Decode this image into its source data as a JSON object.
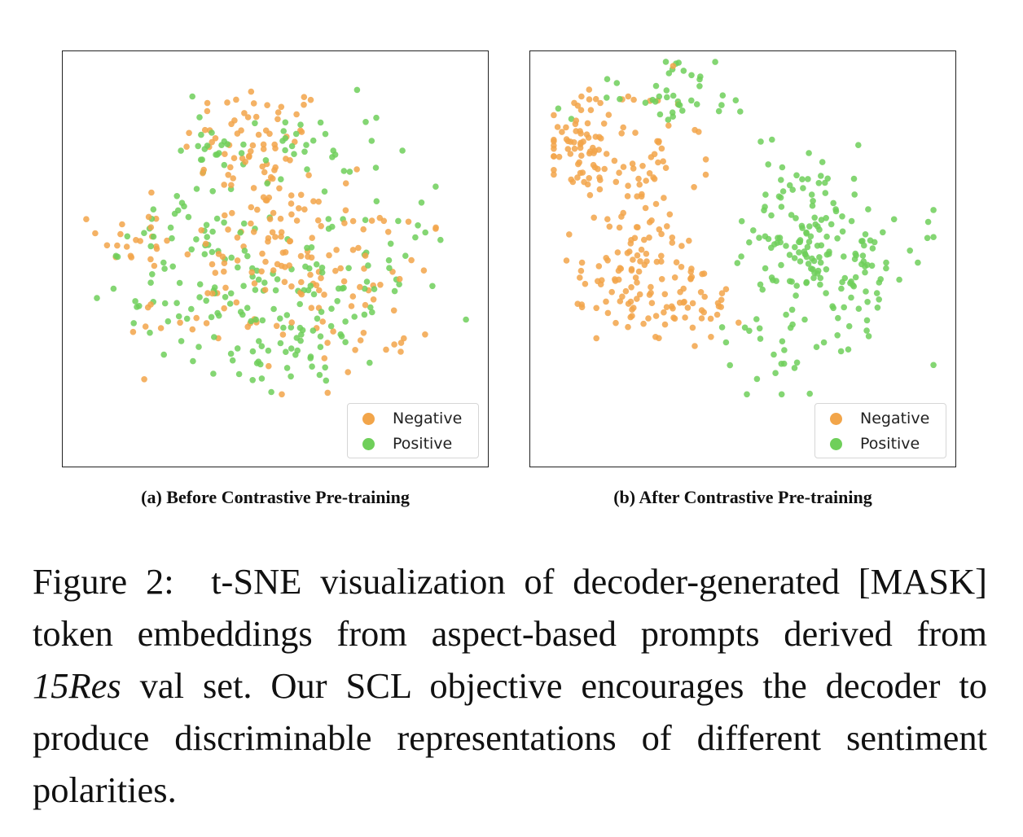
{
  "figure": {
    "caption_prefix": "Figure 2:",
    "caption_part1": "t-SNE visualization of decoder-generated [MASK] token embeddings from aspect-based prompts derived from",
    "caption_italic": "15Res",
    "caption_part2": "val set. Our SCL objective encourages the decoder to produce discriminable representations of different sentiment polarities."
  },
  "colors": {
    "negative": "#f2a54a",
    "positive": "#6fcf5a"
  },
  "chart_data": [
    {
      "type": "scatter",
      "subcaption": "(a) Before Contrastive Pre-training",
      "legend": {
        "position": "lower-right",
        "entries": [
          "Negative",
          "Positive"
        ]
      },
      "axes_visible": false,
      "xlim": [
        0,
        100
      ],
      "ylim": [
        0,
        100
      ],
      "series": [
        {
          "name": "Negative",
          "color": "#f2a54a",
          "clusters": [
            {
              "cx": 45,
              "cy": 78,
              "sx": 9,
              "sy": 8,
              "n": 70
            },
            {
              "cx": 50,
              "cy": 55,
              "sx": 12,
              "sy": 10,
              "n": 70
            },
            {
              "cx": 16,
              "cy": 55,
              "sx": 5,
              "sy": 4,
              "n": 20
            },
            {
              "cx": 70,
              "cy": 45,
              "sx": 12,
              "sy": 10,
              "n": 45
            },
            {
              "cx": 33,
              "cy": 36,
              "sx": 10,
              "sy": 7,
              "n": 25
            },
            {
              "cx": 68,
              "cy": 28,
              "sx": 8,
              "sy": 6,
              "n": 15
            }
          ]
        },
        {
          "name": "Positive",
          "color": "#6fcf5a",
          "clusters": [
            {
              "cx": 55,
              "cy": 78,
              "sx": 11,
              "sy": 6,
              "n": 40
            },
            {
              "cx": 45,
              "cy": 42,
              "sx": 14,
              "sy": 9,
              "n": 80
            },
            {
              "cx": 30,
              "cy": 65,
              "sx": 6,
              "sy": 10,
              "n": 30
            },
            {
              "cx": 72,
              "cy": 46,
              "sx": 12,
              "sy": 10,
              "n": 45
            },
            {
              "cx": 22,
              "cy": 45,
              "sx": 7,
              "sy": 7,
              "n": 25
            },
            {
              "cx": 52,
              "cy": 25,
              "sx": 12,
              "sy": 5,
              "n": 30
            }
          ]
        }
      ]
    },
    {
      "type": "scatter",
      "subcaption": "(b) After Contrastive Pre-training",
      "legend": {
        "position": "lower-right",
        "entries": [
          "Negative",
          "Positive"
        ]
      },
      "axes_visible": false,
      "xlim": [
        0,
        100
      ],
      "ylim": [
        0,
        100
      ],
      "series": [
        {
          "name": "Negative",
          "color": "#f2a54a",
          "clusters": [
            {
              "cx": 9,
              "cy": 78,
              "sx": 5,
              "sy": 6,
              "n": 70
            },
            {
              "cx": 23,
              "cy": 72,
              "sx": 6,
              "sy": 6,
              "n": 25
            },
            {
              "cx": 25,
              "cy": 52,
              "sx": 8,
              "sy": 9,
              "n": 80
            },
            {
              "cx": 17,
              "cy": 40,
              "sx": 6,
              "sy": 5,
              "n": 25
            },
            {
              "cx": 38,
              "cy": 38,
              "sx": 7,
              "sy": 4,
              "n": 40
            },
            {
              "cx": 30,
              "cy": 84,
              "sx": 10,
              "sy": 7,
              "n": 12
            }
          ]
        },
        {
          "name": "Positive",
          "color": "#6fcf5a",
          "clusters": [
            {
              "cx": 30,
              "cy": 91,
              "sx": 10,
              "sy": 4,
              "n": 40
            },
            {
              "cx": 62,
              "cy": 65,
              "sx": 6,
              "sy": 8,
              "n": 40
            },
            {
              "cx": 72,
              "cy": 50,
              "sx": 10,
              "sy": 8,
              "n": 130
            },
            {
              "cx": 65,
              "cy": 32,
              "sx": 10,
              "sy": 7,
              "n": 25
            },
            {
              "cx": 60,
              "cy": 24,
              "sx": 5,
              "sy": 3,
              "n": 8
            }
          ]
        }
      ]
    }
  ]
}
